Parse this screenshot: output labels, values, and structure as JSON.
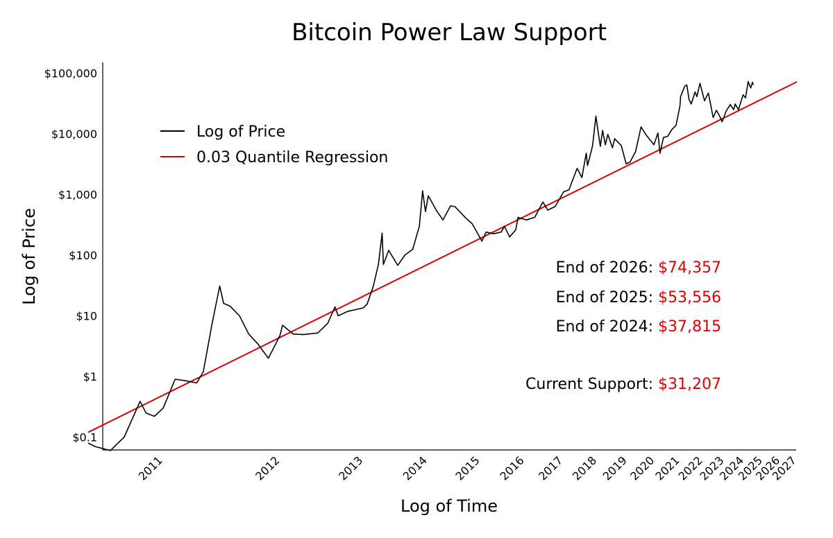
{
  "chart_data": {
    "type": "line",
    "title": "Bitcoin Power Law Support",
    "xlabel": "Log of Time",
    "ylabel": "Log of Price",
    "x_scale": "log of time",
    "y_scale": "log",
    "ylim": [
      0.08,
      130000
    ],
    "y_ticks": [
      {
        "value": 0.1,
        "label": "$0.1"
      },
      {
        "value": 1,
        "label": "$1"
      },
      {
        "value": 10,
        "label": "$10"
      },
      {
        "value": 100,
        "label": "$100"
      },
      {
        "value": 1000,
        "label": "$1,000"
      },
      {
        "value": 10000,
        "label": "$10,000"
      },
      {
        "value": 100000,
        "label": "$100,000"
      }
    ],
    "x_ticks": [
      "2011",
      "2012",
      "2013",
      "2014",
      "2015",
      "2016",
      "2017",
      "2018",
      "2019",
      "2020",
      "2021",
      "2022",
      "2023",
      "2024",
      "2025",
      "2026",
      "2027"
    ],
    "legend_position": "upper-left",
    "grid": false,
    "series": [
      {
        "name": "Log of Price",
        "color": "#000000",
        "points": [
          [
            "2010-07-18",
            0.08
          ],
          [
            "2010-08-01",
            0.07
          ],
          [
            "2010-09-01",
            0.06
          ],
          [
            "2010-10-01",
            0.1
          ],
          [
            "2010-11-06",
            0.39
          ],
          [
            "2010-11-20",
            0.25
          ],
          [
            "2010-12-10",
            0.22
          ],
          [
            "2011-01-01",
            0.3
          ],
          [
            "2011-02-01",
            0.9
          ],
          [
            "2011-03-01",
            0.85
          ],
          [
            "2011-04-01",
            0.78
          ],
          [
            "2011-04-20",
            1.2
          ],
          [
            "2011-05-15",
            7.0
          ],
          [
            "2011-06-08",
            31.0
          ],
          [
            "2011-06-20",
            16.0
          ],
          [
            "2011-07-10",
            14.5
          ],
          [
            "2011-08-10",
            10.0
          ],
          [
            "2011-09-10",
            5.0
          ],
          [
            "2011-10-10",
            3.5
          ],
          [
            "2011-11-18",
            2.0
          ],
          [
            "2011-12-31",
            4.7
          ],
          [
            "2012-01-10",
            7.0
          ],
          [
            "2012-02-20",
            5.0
          ],
          [
            "2012-04-01",
            4.9
          ],
          [
            "2012-06-01",
            5.2
          ],
          [
            "2012-07-15",
            7.5
          ],
          [
            "2012-08-17",
            14.0
          ],
          [
            "2012-09-01",
            10.0
          ],
          [
            "2012-10-15",
            11.8
          ],
          [
            "2012-12-31",
            13.5
          ],
          [
            "2013-01-20",
            15.5
          ],
          [
            "2013-02-20",
            30.0
          ],
          [
            "2013-03-20",
            70.0
          ],
          [
            "2013-04-09",
            230.0
          ],
          [
            "2013-04-16",
            70.0
          ],
          [
            "2013-05-15",
            120.0
          ],
          [
            "2013-07-05",
            68.0
          ],
          [
            "2013-08-15",
            100.0
          ],
          [
            "2013-10-01",
            125.0
          ],
          [
            "2013-11-10",
            300.0
          ],
          [
            "2013-11-30",
            1150.0
          ],
          [
            "2013-12-18",
            520.0
          ],
          [
            "2014-01-05",
            950.0
          ],
          [
            "2014-02-25",
            550.0
          ],
          [
            "2014-04-10",
            380.0
          ],
          [
            "2014-06-01",
            650.0
          ],
          [
            "2014-07-01",
            630.0
          ],
          [
            "2014-09-20",
            400.0
          ],
          [
            "2014-11-01",
            330.0
          ],
          [
            "2015-01-14",
            170.0
          ],
          [
            "2015-02-15",
            240.0
          ],
          [
            "2015-04-15",
            225.0
          ],
          [
            "2015-06-15",
            240.0
          ],
          [
            "2015-07-12",
            300.0
          ],
          [
            "2015-08-24",
            200.0
          ],
          [
            "2015-10-15",
            260.0
          ],
          [
            "2015-11-04",
            420.0
          ],
          [
            "2016-01-15",
            380.0
          ],
          [
            "2016-04-01",
            420.0
          ],
          [
            "2016-06-16",
            750.0
          ],
          [
            "2016-08-02",
            550.0
          ],
          [
            "2016-10-15",
            640.0
          ],
          [
            "2017-01-04",
            1100.0
          ],
          [
            "2017-03-01",
            1200.0
          ],
          [
            "2017-05-25",
            2700.0
          ],
          [
            "2017-07-16",
            1900.0
          ],
          [
            "2017-09-01",
            4800.0
          ],
          [
            "2017-09-15",
            3000.0
          ],
          [
            "2017-11-10",
            6300.0
          ],
          [
            "2017-12-17",
            19500.0
          ],
          [
            "2018-02-06",
            6200.0
          ],
          [
            "2018-03-05",
            11400.0
          ],
          [
            "2018-04-06",
            6600.0
          ],
          [
            "2018-05-05",
            9800.0
          ],
          [
            "2018-06-29",
            5900.0
          ],
          [
            "2018-07-25",
            8300.0
          ],
          [
            "2018-10-15",
            6400.0
          ],
          [
            "2018-12-15",
            3200.0
          ],
          [
            "2019-02-01",
            3400.0
          ],
          [
            "2019-04-15",
            5100.0
          ],
          [
            "2019-06-26",
            13000.0
          ],
          [
            "2019-09-01",
            9600.0
          ],
          [
            "2019-12-17",
            6600.0
          ],
          [
            "2020-02-12",
            10300.0
          ],
          [
            "2020-03-12",
            4800.0
          ],
          [
            "2020-05-01",
            8700.0
          ],
          [
            "2020-07-01",
            9100.0
          ],
          [
            "2020-09-01",
            11800.0
          ],
          [
            "2020-11-01",
            13800.0
          ],
          [
            "2020-12-31",
            29000.0
          ],
          [
            "2021-01-08",
            41000.0
          ],
          [
            "2021-03-13",
            61000.0
          ],
          [
            "2021-04-14",
            64000.0
          ],
          [
            "2021-05-19",
            37000.0
          ],
          [
            "2021-06-22",
            31000.0
          ],
          [
            "2021-08-23",
            49000.0
          ],
          [
            "2021-09-21",
            41000.0
          ],
          [
            "2021-11-10",
            68000.0
          ],
          [
            "2022-01-24",
            35000.0
          ],
          [
            "2022-03-28",
            47000.0
          ],
          [
            "2022-05-12",
            28500.0
          ],
          [
            "2022-06-18",
            18500.0
          ],
          [
            "2022-08-14",
            24400.0
          ],
          [
            "2022-10-15",
            19000.0
          ],
          [
            "2022-11-21",
            15800.0
          ],
          [
            "2023-01-30",
            23500.0
          ],
          [
            "2023-04-14",
            30400.0
          ],
          [
            "2023-06-15",
            25000.0
          ],
          [
            "2023-07-13",
            31000.0
          ],
          [
            "2023-09-11",
            25000.0
          ],
          [
            "2023-12-08",
            44000.0
          ],
          [
            "2024-01-23",
            39000.0
          ],
          [
            "2024-03-14",
            73000.0
          ],
          [
            "2024-05-01",
            57000.0
          ],
          [
            "2024-06-05",
            71000.0
          ],
          [
            "2024-06-20",
            64000.0
          ]
        ]
      },
      {
        "name": "0.03 Quantile Regression",
        "color": "#dd0000",
        "points": [
          [
            "2010-07-18",
            0.12
          ],
          [
            "2027-01-01",
            72000
          ]
        ]
      }
    ],
    "annotations": [
      {
        "label": "End of 2026: ",
        "value": "$74,357"
      },
      {
        "label": "End of 2025: ",
        "value": "$53,556"
      },
      {
        "label": "End of 2024: ",
        "value": "$37,815"
      },
      {
        "label": "Current Support: ",
        "value": "$31,207"
      }
    ],
    "annotation_value_color": "#dd0000"
  }
}
